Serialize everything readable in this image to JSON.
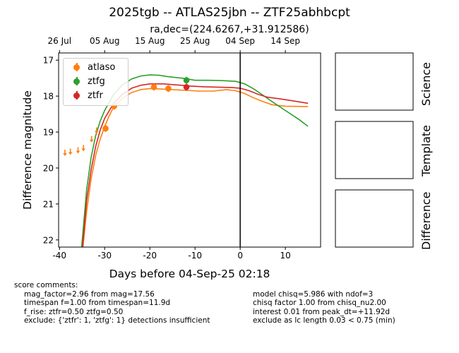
{
  "header": {
    "title": "2025tgb -- ATLAS25jbn -- ZTF25abhbcpt",
    "subtitle": "ra,dec=(224.6267,+31.912586)"
  },
  "panels": {
    "science_label": "Science",
    "template_label": "Template",
    "difference_label": "Difference"
  },
  "comments": {
    "heading": "score comments:",
    "left": [
      "mag_factor=2.96 from mag=17.56",
      "timespan f=1.00 from timespan=11.9d",
      "f_rise: ztfr=0.50 ztfg=0.50",
      "exclude: {'ztfr': 1, 'ztfg': 1} detections insufficient"
    ],
    "right": [
      "model chisq=5.986 with ndof=3",
      "chisq factor 1.00 from chisq_nu2.00",
      "interest 0.01 from peak_dt=+11.92d",
      "exclude as lc length 0.03 < 0.75 (min)"
    ]
  },
  "chart_data": {
    "type": "scatter",
    "xlabel": "Days before 04-Sep-25 02:18",
    "ylabel": "Difference magnitude",
    "xlim": [
      -40.2,
      17.8
    ],
    "ylim": [
      22.2,
      16.8
    ],
    "xticks": [
      -40,
      -30,
      -20,
      -10,
      0,
      10
    ],
    "yticks": [
      17,
      18,
      19,
      20,
      21,
      22
    ],
    "top_axis": {
      "ticks": [
        {
          "label": "26 Jul",
          "x": -40
        },
        {
          "label": "05 Aug",
          "x": -30
        },
        {
          "label": "15 Aug",
          "x": -20
        },
        {
          "label": "25 Aug",
          "x": -10
        },
        {
          "label": "04 Sep",
          "x": 0
        },
        {
          "label": "14 Sep",
          "x": 10
        }
      ]
    },
    "vline_x": 0,
    "legend": {
      "placement": "top-left",
      "entries": [
        {
          "name": "atlaso",
          "color": "#ff7f0e"
        },
        {
          "name": "ztfg",
          "color": "#2ca02c"
        },
        {
          "name": "ztfr",
          "color": "#d62728"
        }
      ]
    },
    "series": [
      {
        "name": "atlaso",
        "color": "#ff7f0e",
        "detections": [
          {
            "x": -29.8,
            "y": 18.9
          },
          {
            "x": -27.9,
            "y": 18.28
          },
          {
            "x": -19.1,
            "y": 17.75
          },
          {
            "x": -15.9,
            "y": 17.79
          }
        ],
        "upper_limits": [
          {
            "x": -38.8,
            "y": 19.55
          },
          {
            "x": -37.6,
            "y": 19.52
          },
          {
            "x": -35.9,
            "y": 19.48
          },
          {
            "x": -34.7,
            "y": 19.42
          },
          {
            "x": -32.9,
            "y": 19.17
          },
          {
            "x": -31.8,
            "y": 18.93
          }
        ],
        "model": [
          {
            "x": -34.8,
            "y": 22.2
          },
          {
            "x": -34,
            "y": 21.2
          },
          {
            "x": -33,
            "y": 20.3
          },
          {
            "x": -32,
            "y": 19.65
          },
          {
            "x": -31,
            "y": 19.2
          },
          {
            "x": -30,
            "y": 18.85
          },
          {
            "x": -29,
            "y": 18.55
          },
          {
            "x": -28,
            "y": 18.3
          },
          {
            "x": -26,
            "y": 18.05
          },
          {
            "x": -24,
            "y": 17.9
          },
          {
            "x": -22,
            "y": 17.82
          },
          {
            "x": -20,
            "y": 17.79
          },
          {
            "x": -18,
            "y": 17.8
          },
          {
            "x": -15,
            "y": 17.82
          },
          {
            "x": -12,
            "y": 17.84
          },
          {
            "x": -9,
            "y": 17.86
          },
          {
            "x": -6,
            "y": 17.86
          },
          {
            "x": -3,
            "y": 17.82
          },
          {
            "x": -1,
            "y": 17.85
          },
          {
            "x": 1,
            "y": 17.93
          },
          {
            "x": 3,
            "y": 18.05
          },
          {
            "x": 5,
            "y": 18.15
          },
          {
            "x": 7,
            "y": 18.24
          },
          {
            "x": 10,
            "y": 18.28
          },
          {
            "x": 15,
            "y": 18.29
          }
        ]
      },
      {
        "name": "ztfg",
        "color": "#2ca02c",
        "detections": [
          {
            "x": -11.9,
            "y": 17.56
          }
        ],
        "upper_limits": [],
        "model": [
          {
            "x": -35.1,
            "y": 22.2
          },
          {
            "x": -34,
            "y": 20.6
          },
          {
            "x": -33,
            "y": 19.7
          },
          {
            "x": -32,
            "y": 19.1
          },
          {
            "x": -31,
            "y": 18.7
          },
          {
            "x": -30,
            "y": 18.4
          },
          {
            "x": -28,
            "y": 17.95
          },
          {
            "x": -26,
            "y": 17.68
          },
          {
            "x": -24,
            "y": 17.52
          },
          {
            "x": -22,
            "y": 17.44
          },
          {
            "x": -20,
            "y": 17.41
          },
          {
            "x": -18,
            "y": 17.42
          },
          {
            "x": -16,
            "y": 17.46
          },
          {
            "x": -13,
            "y": 17.5
          },
          {
            "x": -10,
            "y": 17.56
          },
          {
            "x": -7,
            "y": 17.56
          },
          {
            "x": -4,
            "y": 17.57
          },
          {
            "x": -1,
            "y": 17.59
          },
          {
            "x": 1,
            "y": 17.66
          },
          {
            "x": 3,
            "y": 17.8
          },
          {
            "x": 5,
            "y": 17.97
          },
          {
            "x": 7,
            "y": 18.15
          },
          {
            "x": 10,
            "y": 18.4
          },
          {
            "x": 13,
            "y": 18.65
          },
          {
            "x": 15,
            "y": 18.84
          }
        ]
      },
      {
        "name": "ztfr",
        "color": "#d62728",
        "detections": [
          {
            "x": -11.9,
            "y": 17.75
          }
        ],
        "upper_limits": [],
        "model": [
          {
            "x": -34.9,
            "y": 22.2
          },
          {
            "x": -34,
            "y": 20.9
          },
          {
            "x": -33,
            "y": 20.05
          },
          {
            "x": -32,
            "y": 19.4
          },
          {
            "x": -31,
            "y": 18.95
          },
          {
            "x": -30,
            "y": 18.62
          },
          {
            "x": -28,
            "y": 18.2
          },
          {
            "x": -26,
            "y": 17.94
          },
          {
            "x": -24,
            "y": 17.78
          },
          {
            "x": -22,
            "y": 17.7
          },
          {
            "x": -20,
            "y": 17.66
          },
          {
            "x": -17,
            "y": 17.66
          },
          {
            "x": -14,
            "y": 17.69
          },
          {
            "x": -11,
            "y": 17.72
          },
          {
            "x": -8,
            "y": 17.74
          },
          {
            "x": -5,
            "y": 17.75
          },
          {
            "x": -2,
            "y": 17.76
          },
          {
            "x": 0,
            "y": 17.78
          },
          {
            "x": 2,
            "y": 17.85
          },
          {
            "x": 4,
            "y": 17.95
          },
          {
            "x": 6,
            "y": 18.03
          },
          {
            "x": 9,
            "y": 18.08
          },
          {
            "x": 12,
            "y": 18.14
          },
          {
            "x": 15,
            "y": 18.2
          }
        ]
      }
    ]
  }
}
